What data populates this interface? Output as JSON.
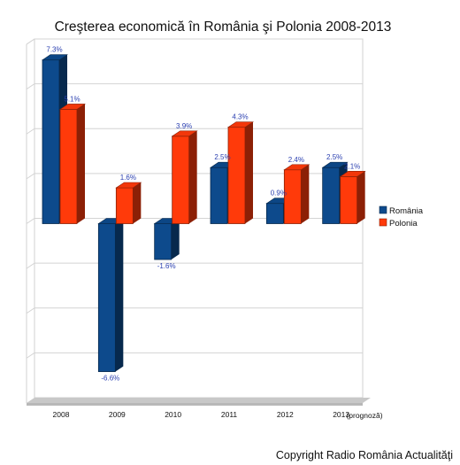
{
  "chart_data": {
    "type": "bar",
    "title": "Creşterea economică în România şi Polonia 2008-2013",
    "categories": [
      "2008",
      "2009",
      "2010",
      "2011",
      "2012",
      "2013"
    ],
    "category_note": "(prognoză)",
    "series": [
      {
        "name": "România",
        "values": [
          7.3,
          -6.6,
          -1.6,
          2.5,
          0.9,
          2.5
        ],
        "labels": [
          "7.3%",
          "-6.6%",
          "-1.6%",
          "2.5%",
          "0.9%",
          "2.5%"
        ],
        "color": "#0d4a8c"
      },
      {
        "name": "Polonia",
        "values": [
          5.1,
          1.6,
          3.9,
          4.3,
          2.4,
          2.1
        ],
        "labels": [
          "5.1%",
          "1.6%",
          "3.9%",
          "4.3%",
          "2.4%",
          "2.1%"
        ],
        "color": "#ff3a0a"
      }
    ],
    "ylim": [
      -8,
      8
    ],
    "grid": true,
    "legend": "right",
    "style": "3d"
  },
  "footer": {
    "copyright": "Copyright Radio România Actualităţi"
  }
}
